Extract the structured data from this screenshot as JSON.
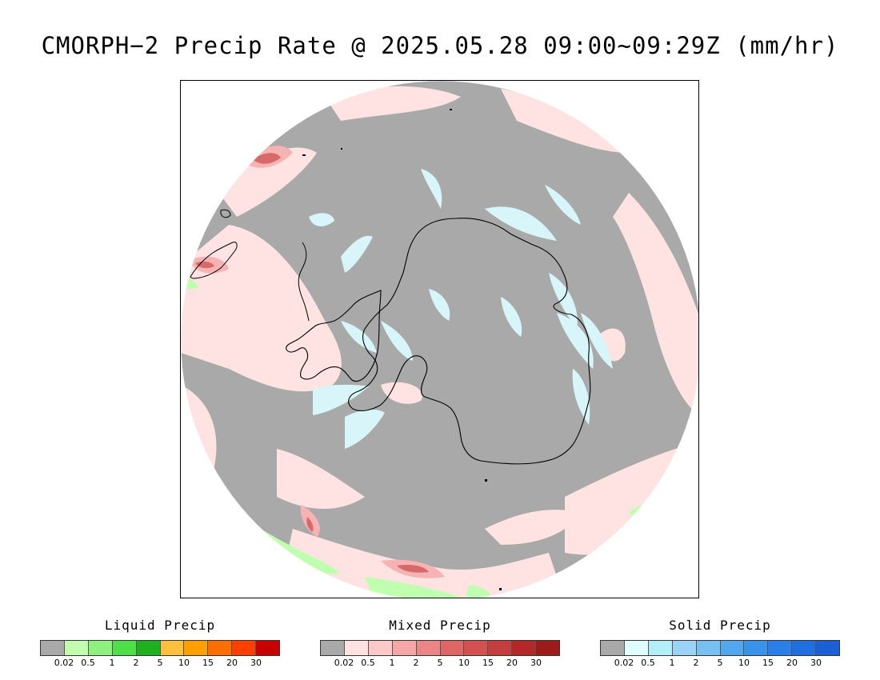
{
  "title": "CMORPH−2 Precip Rate @ 2025.05.28 09:00~09:29Z (mm/hr)",
  "colors": {
    "no_precip": "#a9a9a9",
    "mixed_light": "#ffe2e2",
    "mixed_mid": "#f5b3b3",
    "mixed_dark": "#d66a6a",
    "solid_light": "#d8f6fa",
    "liquid_light": "#c0ffb0",
    "coastline": "#000000"
  },
  "legends": [
    {
      "title": "Liquid Precip",
      "colors": [
        "#a9a9a9",
        "#c0ffb0",
        "#8ff07f",
        "#4ee048",
        "#1fb01f",
        "#ffbf3f",
        "#ff9f00",
        "#ff6f00",
        "#ff3f00",
        "#c80000"
      ],
      "ticks": [
        "0.02",
        "0.5",
        "1",
        "2",
        "5",
        "10",
        "15",
        "20",
        "30"
      ]
    },
    {
      "title": "Mixed Precip",
      "colors": [
        "#a9a9a9",
        "#ffe2e2",
        "#fcc8c8",
        "#f5a7a7",
        "#ec8585",
        "#e06666",
        "#d45151",
        "#c63d3d",
        "#b32828",
        "#9c1c1c"
      ],
      "ticks": [
        "0.02",
        "0.5",
        "1",
        "2",
        "5",
        "10",
        "15",
        "20",
        "30"
      ]
    },
    {
      "title": "Solid Precip",
      "colors": [
        "#a9a9a9",
        "#e0fdff",
        "#b4eef8",
        "#9ad3f5",
        "#78bff2",
        "#52a8ee",
        "#3a93eb",
        "#2a80e8",
        "#1f6fe0",
        "#1a5fd4"
      ],
      "ticks": [
        "0.02",
        "0.5",
        "1",
        "2",
        "5",
        "10",
        "15",
        "20",
        "30"
      ]
    }
  ]
}
